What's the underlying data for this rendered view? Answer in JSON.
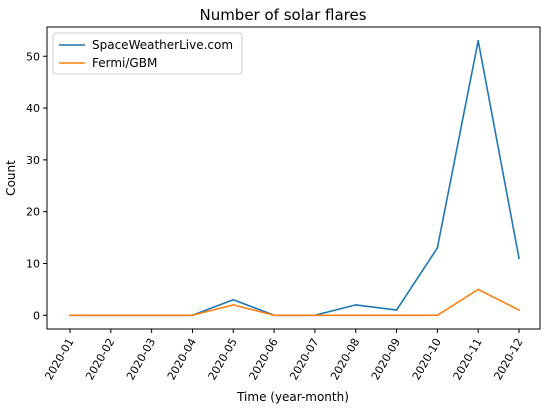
{
  "chart_data": {
    "type": "line",
    "title": "Number of solar flares",
    "xlabel": "Time (year-month)",
    "ylabel": "Count",
    "categories": [
      "2020-01",
      "2020-02",
      "2020-03",
      "2020-04",
      "2020-05",
      "2020-06",
      "2020-07",
      "2020-08",
      "2020-09",
      "2020-10",
      "2020-11",
      "2020-12"
    ],
    "yticks": [
      0,
      10,
      20,
      30,
      40,
      50
    ],
    "ylim": [
      -2.65,
      55.65
    ],
    "grid": false,
    "legend_position": "top-left",
    "series": [
      {
        "name": "SpaceWeatherLive.com",
        "color": "#1f77b4",
        "values": [
          0,
          0,
          0,
          0,
          3,
          0,
          0,
          2,
          1,
          13,
          53,
          11
        ]
      },
      {
        "name": "Fermi/GBM",
        "color": "#ff7f0e",
        "values": [
          0,
          0,
          0,
          0,
          2,
          0,
          0,
          0,
          0,
          0,
          5,
          1
        ]
      }
    ]
  }
}
